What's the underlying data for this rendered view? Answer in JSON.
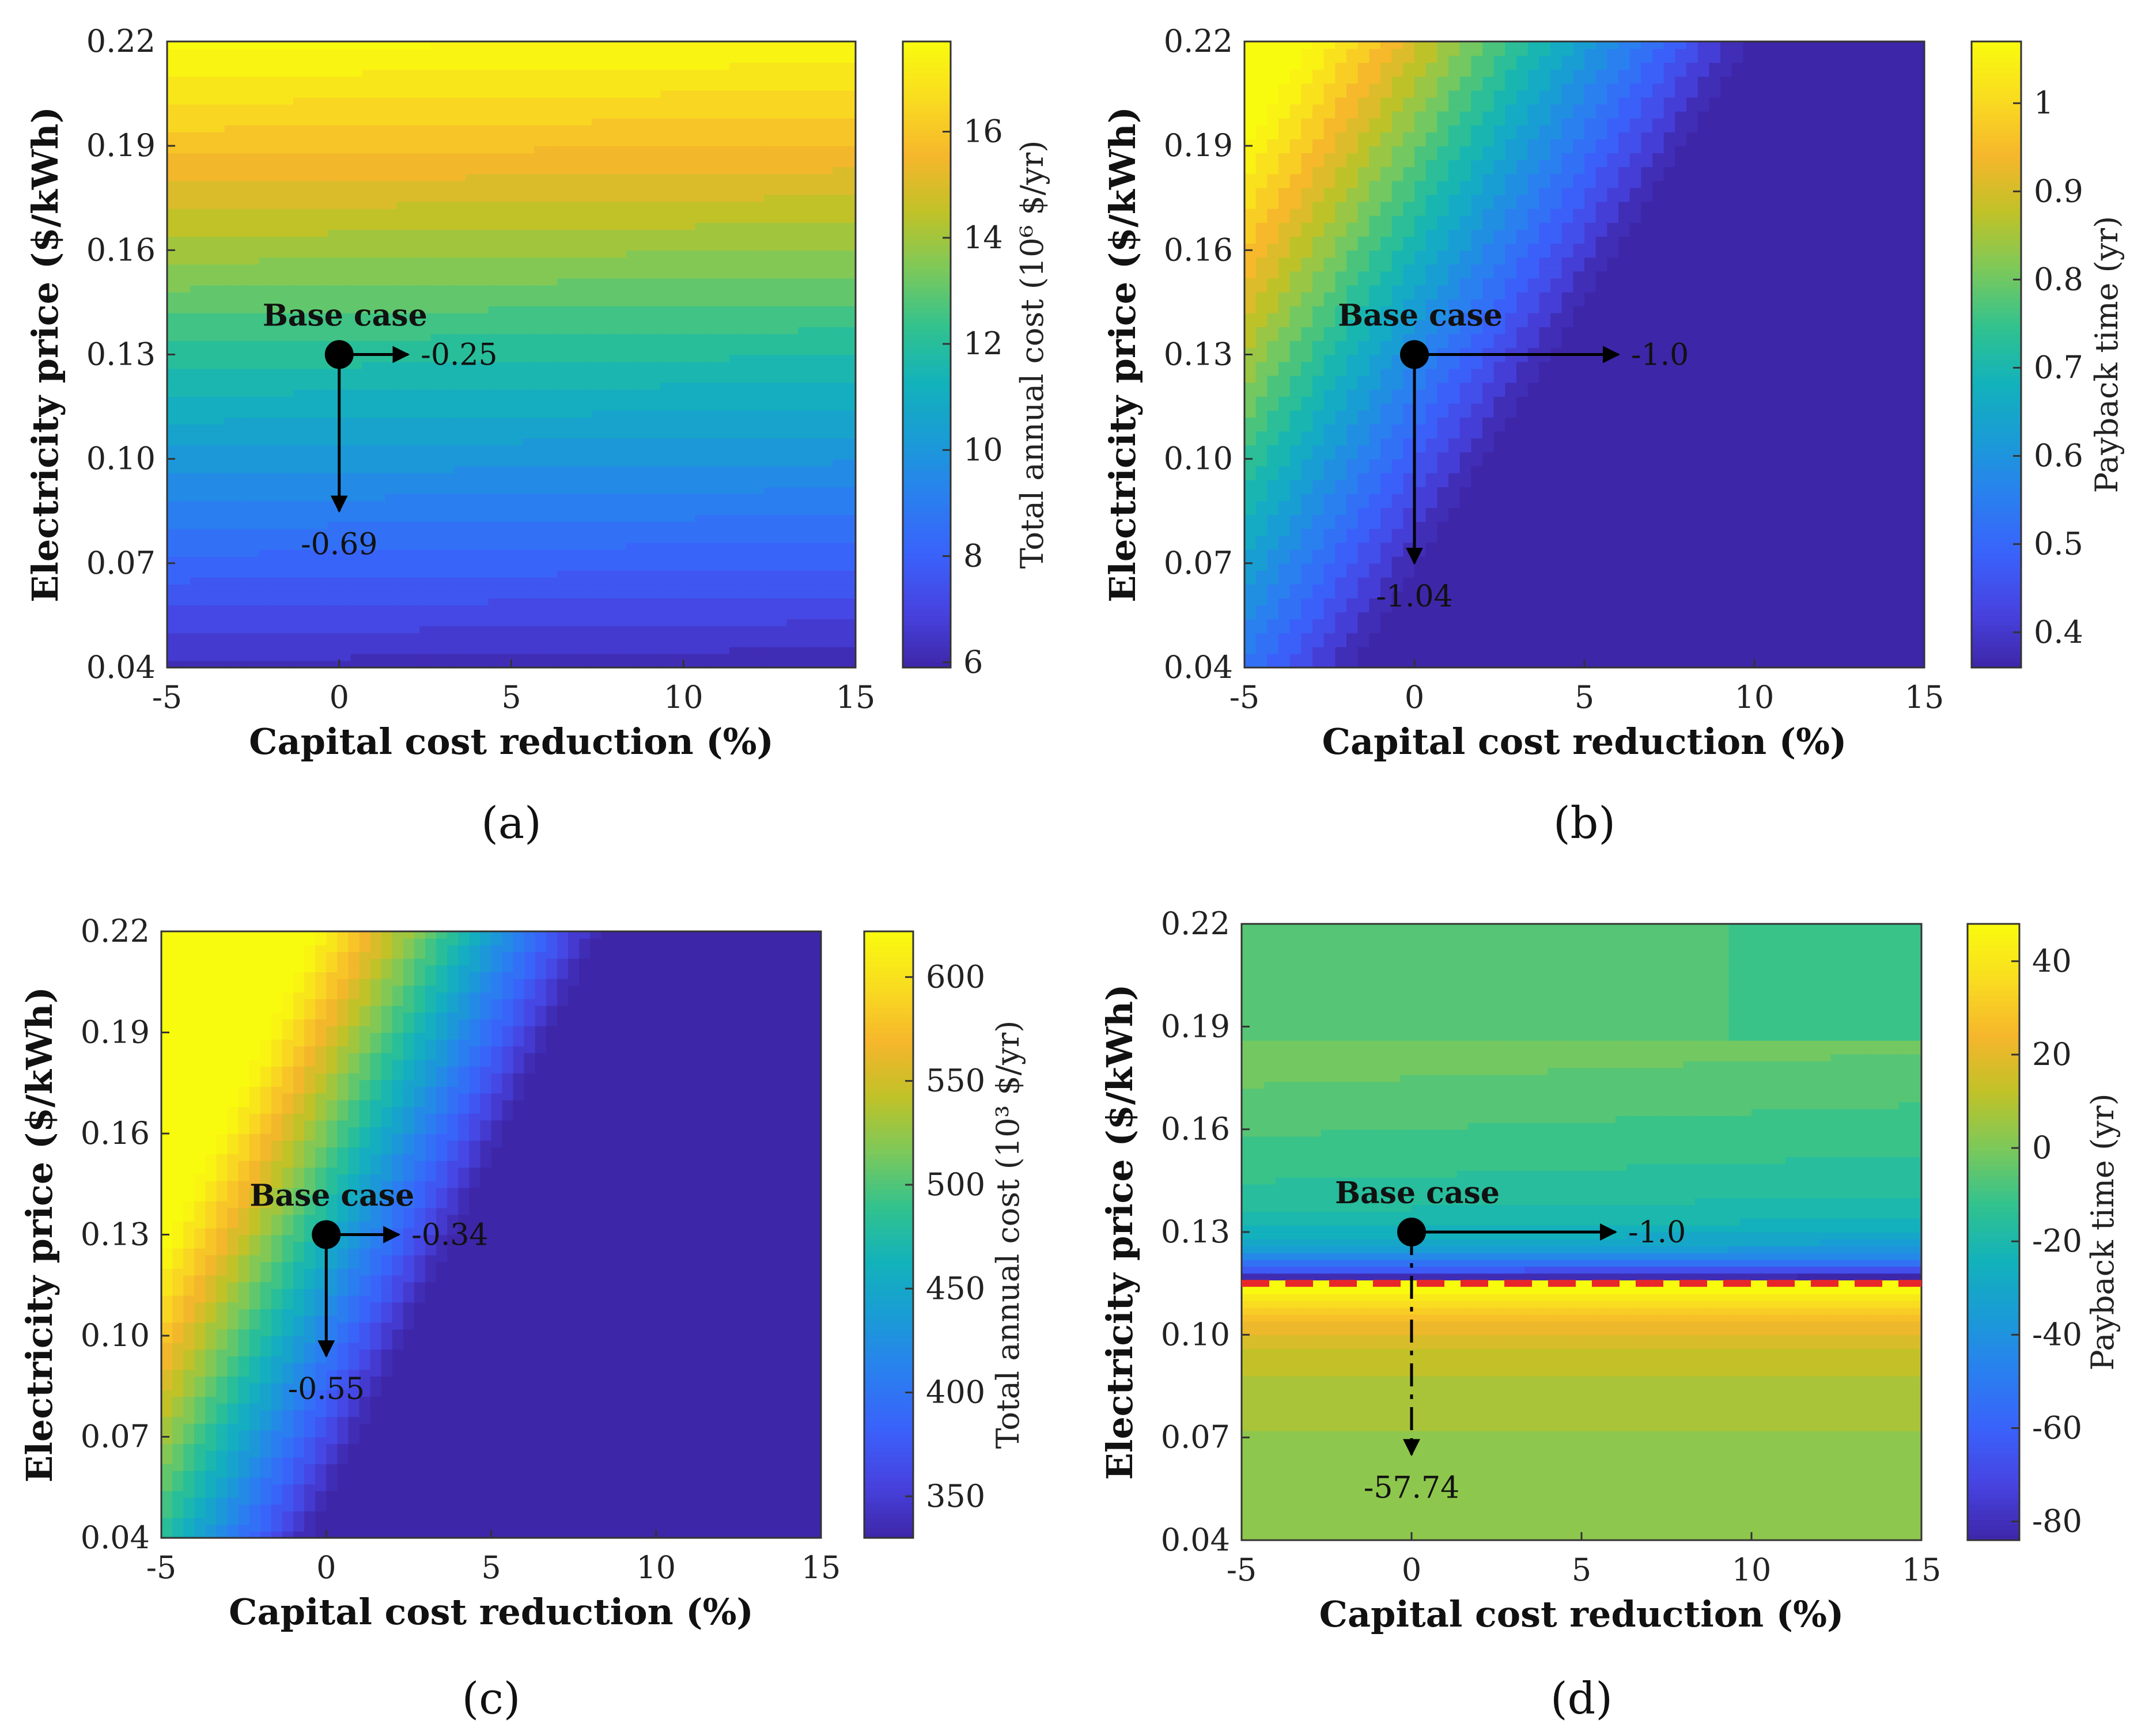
{
  "figure": {
    "colormap": [
      "#3e26a8",
      "#4743e0",
      "#3a62fb",
      "#2a7ff0",
      "#1a9bd6",
      "#12b2bb",
      "#32c28e",
      "#7cc95a",
      "#c0c228",
      "#f6b62c",
      "#f9dc20",
      "#f9fb0e"
    ],
    "boundary_color": "#e8262a",
    "chart_data": [
      {
        "id": "a",
        "type": "contour",
        "caption": "(a)",
        "xlabel": "Capital cost reduction (%)",
        "ylabel": "Electricity price ($/kWh)",
        "x_ticks": [
          -5,
          0,
          5,
          10,
          15
        ],
        "y_ticks": [
          "0.04",
          "0.07",
          "0.10",
          "0.13",
          "0.16",
          "0.19",
          "0.22"
        ],
        "xlim": [
          -5,
          15
        ],
        "ylim": [
          0.04,
          0.22
        ],
        "surface": {
          "min": 6,
          "max": 17.6,
          "at_base": 12.0,
          "dz_dy": 64.4,
          "dz_dx": -0.012,
          "levels": 24
        },
        "colorbar": {
          "label": "Total annual cost (10⁶ $/yr)",
          "min": 5.9,
          "max": 17.7,
          "ticks": [
            "6",
            "8",
            "10",
            "12",
            "14",
            "16"
          ]
        },
        "base_case": {
          "label": "Base case",
          "x": 0,
          "y": 0.13
        },
        "arrows": [
          {
            "direction": "right",
            "label": "-0.25",
            "to": 2
          },
          {
            "direction": "down",
            "label": "-0.69",
            "to": 0.085
          }
        ]
      },
      {
        "id": "b",
        "type": "contour",
        "caption": "(b)",
        "xlabel": "Capital cost reduction (%)",
        "ylabel": "Electricity price ($/kWh)",
        "x_ticks": [
          -5,
          0,
          5,
          10,
          15
        ],
        "y_ticks": [
          "0.04",
          "0.07",
          "0.10",
          "0.13",
          "0.16",
          "0.19",
          "0.22"
        ],
        "xlim": [
          -5,
          15
        ],
        "ylim": [
          0.04,
          0.22
        ],
        "surface": {
          "min": 0.37,
          "max": 1.07,
          "at_base": 0.58,
          "dz_dy": 3.6,
          "dz_dx": -0.011,
          "levels": 20
        },
        "colorbar": {
          "label": "Payback time (yr)",
          "min": 0.36,
          "max": 1.07,
          "ticks": [
            "0.4",
            "0.5",
            "0.6",
            "0.7",
            "0.8",
            "0.9",
            "1"
          ]
        },
        "base_case": {
          "label": "Base case",
          "x": 0,
          "y": 0.13
        },
        "arrows": [
          {
            "direction": "right",
            "label": "-1.0",
            "to": 6
          },
          {
            "direction": "down",
            "label": "-1.04",
            "to": 0.07
          }
        ]
      },
      {
        "id": "c",
        "type": "contour",
        "caption": "(c)",
        "xlabel": "Capital cost reduction (%)",
        "ylabel": "Electricity price ($/kWh)",
        "x_ticks": [
          -5,
          0,
          5,
          10,
          15
        ],
        "y_ticks": [
          "0.04",
          "0.07",
          "0.10",
          "0.13",
          "0.16",
          "0.19",
          "0.22"
        ],
        "xlim": [
          -5,
          15
        ],
        "ylim": [
          0.04,
          0.22
        ],
        "surface": {
          "min": 335,
          "max": 620,
          "at_base": 462,
          "dz_dy": 1670,
          "dz_dx": -2.2,
          "levels": 24
        },
        "colorbar": {
          "label": "Total annual cost (10³ $/yr)",
          "min": 330,
          "max": 622,
          "ticks": [
            "350",
            "400",
            "450",
            "500",
            "550",
            "600"
          ]
        },
        "base_case": {
          "label": "Base case",
          "x": 0,
          "y": 0.13
        },
        "arrows": [
          {
            "direction": "right",
            "label": "-0.34",
            "to": 2.2
          },
          {
            "direction": "down",
            "label": "-0.55",
            "to": 0.094
          }
        ]
      },
      {
        "id": "d",
        "type": "contour",
        "caption": "(d)",
        "xlabel": "Capital cost reduction (%)",
        "ylabel": "Electricity price ($/kWh)",
        "x_ticks": [
          -5,
          0,
          5,
          10,
          15
        ],
        "y_ticks": [
          "0.04",
          "0.07",
          "0.10",
          "0.13",
          "0.16",
          "0.19",
          "0.22"
        ],
        "xlim": [
          -5,
          15
        ],
        "ylim": [
          0.04,
          0.22
        ],
        "surface": {
          "min": -84,
          "max": 47,
          "singularity_y": 0.115,
          "levels": 28
        },
        "colorbar": {
          "label": "Payback time (yr)",
          "min": -84,
          "max": 48,
          "ticks": [
            "-80",
            "-60",
            "-40",
            "-20",
            "0",
            "20",
            "40"
          ]
        },
        "base_case": {
          "label": "Base case",
          "x": 0,
          "y": 0.13
        },
        "boundary": {
          "y": 0.115,
          "style": "dashed"
        },
        "arrows": [
          {
            "direction": "right",
            "label": "-1.0",
            "to": 6
          },
          {
            "direction": "down",
            "label": "-57.74",
            "to": 0.065,
            "style": "dashdot"
          }
        ]
      }
    ]
  }
}
